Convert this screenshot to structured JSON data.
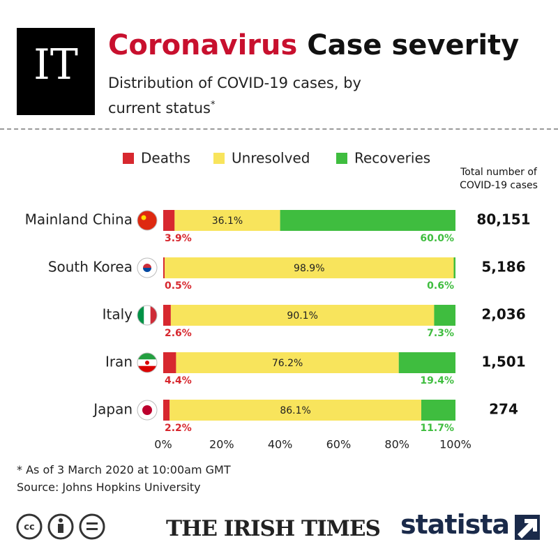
{
  "chart_data": {
    "type": "stacked-bar",
    "title_highlight": "Coronavirus",
    "title": "Case severity",
    "subtitle": "Distribution of COVID-19 cases, by current status",
    "subtitle_marker": "*",
    "categories": [
      "Mainland China",
      "South Korea",
      "Italy",
      "Iran",
      "Japan"
    ],
    "series": [
      {
        "name": "Deaths",
        "color": "#d7282f",
        "label_color": "#d7282f",
        "values": [
          3.9,
          0.5,
          2.6,
          4.4,
          2.2
        ],
        "value_labels": [
          "3.9%",
          "0.5%",
          "2.6%",
          "4.4%",
          "2.2%"
        ]
      },
      {
        "name": "Unresolved",
        "color": "#f8e45c",
        "label_color": "#222222",
        "values": [
          36.1,
          98.9,
          90.1,
          76.2,
          86.1
        ],
        "value_labels": [
          "36.1%",
          "98.9%",
          "90.1%",
          "76.2%",
          "86.1%"
        ]
      },
      {
        "name": "Recoveries",
        "color": "#3fbd3f",
        "label_color": "#3fbd3f",
        "values": [
          60.0,
          0.6,
          7.3,
          19.4,
          11.7
        ],
        "value_labels": [
          "60.0%",
          "0.6%",
          "7.3%",
          "19.4%",
          "11.7%"
        ]
      }
    ],
    "xlim": [
      0,
      100
    ],
    "xticks": [
      {
        "value": 0,
        "label": "0%"
      },
      {
        "value": 20,
        "label": "20%"
      },
      {
        "value": 40,
        "label": "40%"
      },
      {
        "value": 60,
        "label": "60%"
      },
      {
        "value": 80,
        "label": "80%"
      },
      {
        "value": 100,
        "label": "100%"
      }
    ],
    "totals": {
      "title": "Total number of COVID-19 cases",
      "values": [
        80151,
        5186,
        2036,
        1501,
        274
      ],
      "value_labels": [
        "80,151",
        "5,186",
        "2,036",
        "1,501",
        "274"
      ]
    },
    "footnote": "* As of 3 March 2020 at 10:00am GMT",
    "source": "Source: Johns Hopkins University",
    "logo": "IT",
    "publisher": "THE IRISH TIMES",
    "brand": "statista"
  }
}
